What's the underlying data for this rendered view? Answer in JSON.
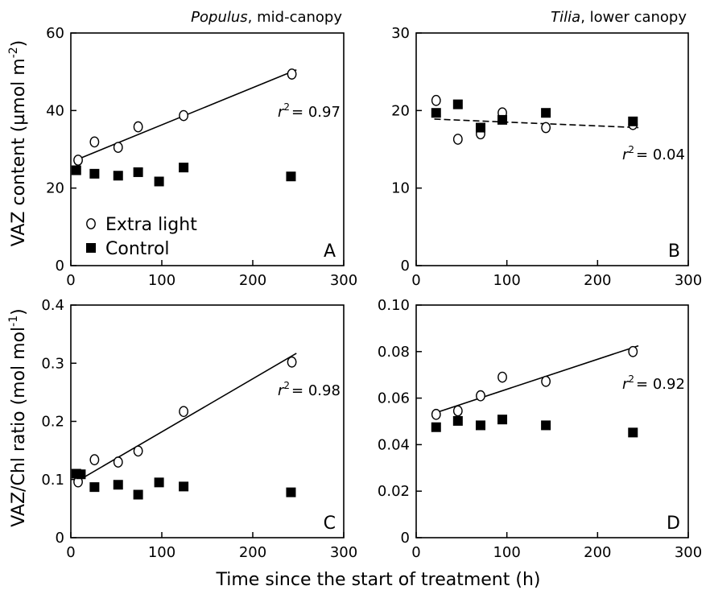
{
  "figure": {
    "xlabel": "Time since the start of treatment (h)",
    "ylabel_top": "VAZ content (µmol m",
    "ylabel_top_sup": "-2",
    "ylabel_top_close": ")",
    "ylabel_bottom": "VAZ/Chl ratio (mol mol",
    "ylabel_bottom_sup": "-1",
    "ylabel_bottom_close": ")",
    "legend": {
      "extra_light": "Extra light",
      "control": "Control"
    }
  },
  "chart_data": [
    {
      "type": "scatter",
      "panel": "A",
      "title_italic": "Populus",
      "title_rest": ", mid-canopy",
      "xlim": [
        0,
        300
      ],
      "ylim": [
        0,
        60
      ],
      "x_ticks": [
        "0",
        "100",
        "200",
        "300"
      ],
      "y_ticks": [
        "0",
        "20",
        "40",
        "60"
      ],
      "r2_label": "= 0.97",
      "fit": {
        "x": [
          3,
          248
        ],
        "y": [
          27.0,
          50.5
        ],
        "dashed": false
      },
      "series": [
        {
          "name": "Extra light",
          "marker": "open-circle",
          "x": [
            8,
            26,
            52,
            74,
            124,
            243
          ],
          "y": [
            27.2,
            31.9,
            30.5,
            35.8,
            38.7,
            49.4
          ]
        },
        {
          "name": "Control",
          "marker": "filled-square",
          "x": [
            6,
            26,
            52,
            74,
            97,
            124,
            242
          ],
          "y": [
            24.6,
            23.7,
            23.2,
            24.1,
            21.7,
            25.3,
            23.0
          ]
        }
      ]
    },
    {
      "type": "scatter",
      "panel": "B",
      "title_italic": "Tilia",
      "title_rest": ", lower canopy",
      "xlim": [
        0,
        300
      ],
      "ylim": [
        0,
        30
      ],
      "x_ticks": [
        "0",
        "100",
        "200",
        "300"
      ],
      "y_ticks": [
        "0",
        "10",
        "20",
        "30"
      ],
      "r2_label": "= 0.04",
      "fit": {
        "x": [
          20,
          245
        ],
        "y": [
          18.9,
          17.8
        ],
        "dashed": true
      },
      "series": [
        {
          "name": "Extra light",
          "marker": "open-circle",
          "x": [
            22,
            46,
            71,
            95,
            143,
            239
          ],
          "y": [
            21.3,
            16.3,
            17.0,
            19.7,
            17.8,
            18.2
          ]
        },
        {
          "name": "Control",
          "marker": "filled-square",
          "x": [
            22,
            46,
            71,
            95,
            143,
            239
          ],
          "y": [
            19.7,
            20.8,
            17.8,
            18.8,
            19.7,
            18.6
          ]
        }
      ]
    },
    {
      "type": "scatter",
      "panel": "C",
      "xlim": [
        0,
        300
      ],
      "ylim": [
        0,
        0.4
      ],
      "x_ticks": [
        "0",
        "100",
        "200",
        "300"
      ],
      "y_ticks": [
        "0",
        "0.1",
        "0.2",
        "0.3",
        "0.4"
      ],
      "r2_label": "= 0.98",
      "fit": {
        "x": [
          8,
          248
        ],
        "y": [
          0.098,
          0.317
        ],
        "dashed": false
      },
      "series": [
        {
          "name": "Extra light",
          "marker": "open-circle",
          "x": [
            8,
            26,
            52,
            74,
            124,
            243
          ],
          "y": [
            0.096,
            0.134,
            0.13,
            0.149,
            0.217,
            0.302
          ]
        },
        {
          "name": "Control",
          "marker": "filled-square",
          "x": [
            6,
            11,
            26,
            52,
            74,
            97,
            124,
            242
          ],
          "y": [
            0.11,
            0.109,
            0.087,
            0.091,
            0.074,
            0.095,
            0.088,
            0.078
          ]
        }
      ]
    },
    {
      "type": "scatter",
      "panel": "D",
      "xlim": [
        0,
        300
      ],
      "ylim": [
        0,
        0.1
      ],
      "x_ticks": [
        "0",
        "100",
        "200",
        "300"
      ],
      "y_ticks": [
        "0",
        "0.02",
        "0.04",
        "0.06",
        "0.08",
        "0.10"
      ],
      "r2_label": "= 0.92",
      "fit": {
        "x": [
          20,
          245
        ],
        "y": [
          0.0535,
          0.0825
        ],
        "dashed": false
      },
      "series": [
        {
          "name": "Extra light",
          "marker": "open-circle",
          "x": [
            22,
            46,
            71,
            95,
            143,
            239
          ],
          "y": [
            0.053,
            0.0545,
            0.061,
            0.069,
            0.0672,
            0.08
          ]
        },
        {
          "name": "Control",
          "marker": "filled-square",
          "x": [
            22,
            46,
            71,
            95,
            143,
            239
          ],
          "y": [
            0.0475,
            0.0502,
            0.0483,
            0.0508,
            0.0483,
            0.0452
          ]
        }
      ]
    }
  ]
}
